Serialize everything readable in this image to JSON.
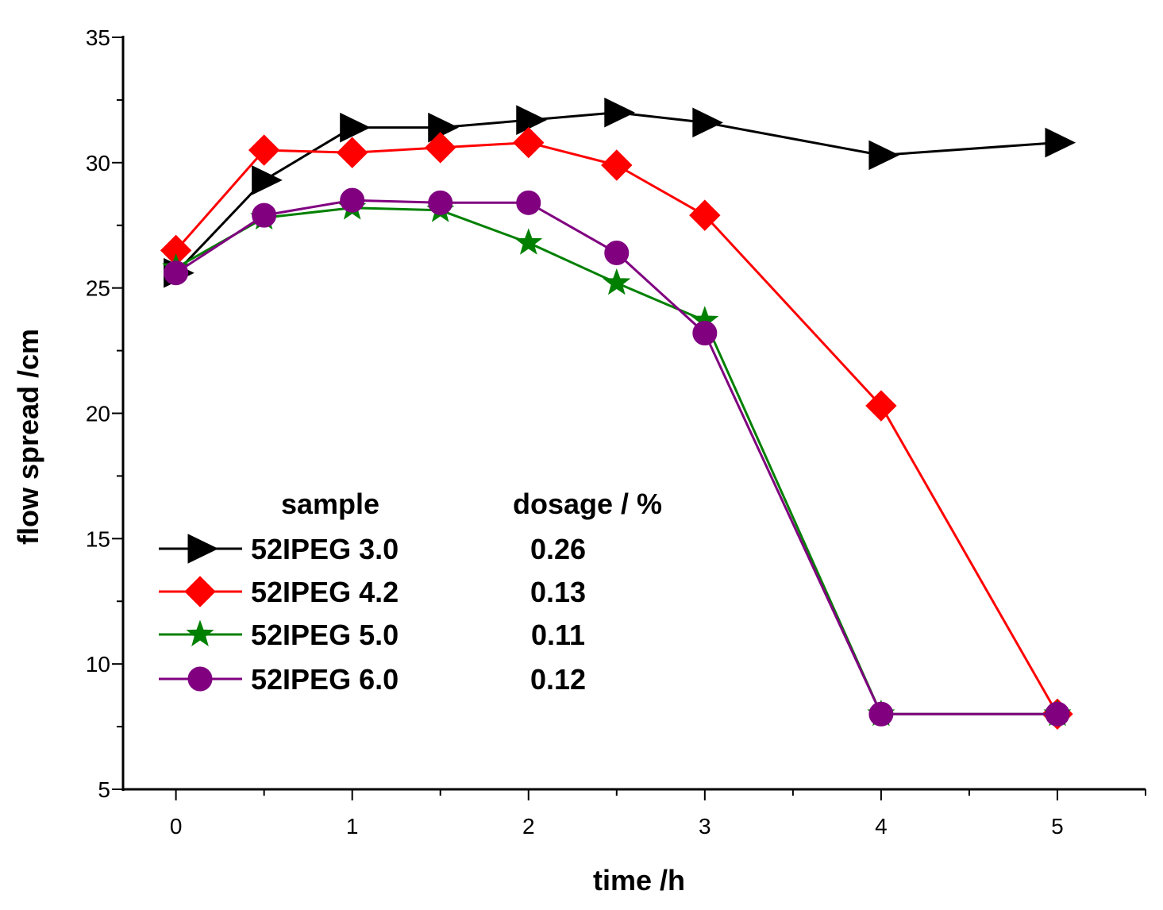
{
  "chart_data": {
    "type": "line",
    "title": "",
    "xlabel": "time /h",
    "ylabel": "flow spread /cm",
    "xlim": [
      -0.3,
      5.5
    ],
    "ylim": [
      5,
      35
    ],
    "x_ticks": [
      0,
      1,
      2,
      3,
      4,
      5
    ],
    "y_ticks": [
      5,
      10,
      15,
      20,
      25,
      30,
      35
    ],
    "grid": false,
    "legend": {
      "position": "lower-left",
      "header_sample": "sample",
      "header_dosage": "dosage / %"
    },
    "series": [
      {
        "name": "52IPEG 3.0",
        "dosage": "0.26",
        "color": "#000000",
        "marker": "triangle-right",
        "x": [
          0,
          0.5,
          1,
          1.5,
          2,
          2.5,
          3,
          4,
          5
        ],
        "values": [
          25.6,
          29.3,
          31.4,
          31.4,
          31.7,
          32.0,
          31.6,
          30.3,
          30.8
        ]
      },
      {
        "name": "52IPEG 4.2",
        "dosage": "0.13",
        "color": "#ff0000",
        "marker": "diamond",
        "x": [
          0,
          0.5,
          1,
          1.5,
          2,
          2.5,
          3,
          4,
          5
        ],
        "values": [
          26.5,
          30.5,
          30.4,
          30.6,
          30.8,
          29.9,
          27.9,
          20.3,
          8.0
        ]
      },
      {
        "name": "52IPEG 5.0",
        "dosage": "0.11",
        "color": "#008000",
        "marker": "star",
        "x": [
          0,
          0.5,
          1,
          1.5,
          2,
          2.5,
          3,
          4,
          5
        ],
        "values": [
          25.8,
          27.8,
          28.2,
          28.1,
          26.8,
          25.2,
          23.7,
          8.0,
          8.0
        ]
      },
      {
        "name": "52IPEG 6.0",
        "dosage": "0.12",
        "color": "#800080",
        "marker": "circle",
        "x": [
          0,
          0.5,
          1,
          1.5,
          2,
          2.5,
          3,
          4,
          5
        ],
        "values": [
          25.6,
          27.9,
          28.5,
          28.4,
          28.4,
          26.4,
          23.2,
          8.0,
          8.0
        ]
      }
    ]
  }
}
